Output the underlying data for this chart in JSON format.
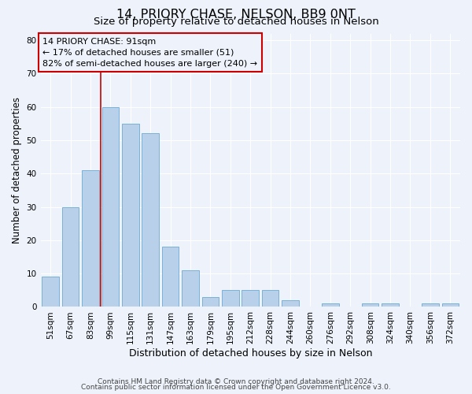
{
  "title": "14, PRIORY CHASE, NELSON, BB9 0NT",
  "subtitle": "Size of property relative to detached houses in Nelson",
  "xlabel": "Distribution of detached houses by size in Nelson",
  "ylabel": "Number of detached properties",
  "footnote1": "Contains HM Land Registry data © Crown copyright and database right 2024.",
  "footnote2": "Contains public sector information licensed under the Open Government Licence v3.0.",
  "annotation_line1": "14 PRIORY CHASE: 91sqm",
  "annotation_line2": "← 17% of detached houses are smaller (51)",
  "annotation_line3": "82% of semi-detached houses are larger (240) →",
  "bar_labels": [
    "51sqm",
    "67sqm",
    "83sqm",
    "99sqm",
    "115sqm",
    "131sqm",
    "147sqm",
    "163sqm",
    "179sqm",
    "195sqm",
    "212sqm",
    "228sqm",
    "244sqm",
    "260sqm",
    "276sqm",
    "292sqm",
    "308sqm",
    "324sqm",
    "340sqm",
    "356sqm",
    "372sqm"
  ],
  "bar_values": [
    9,
    30,
    41,
    60,
    55,
    52,
    18,
    11,
    3,
    5,
    5,
    5,
    2,
    0,
    1,
    0,
    1,
    1,
    0,
    1,
    1
  ],
  "bar_color": "#b8d0ea",
  "bar_edge_color": "#6aaad4",
  "vline_x_idx": 2.5,
  "vline_color": "#cc0000",
  "annotation_box_color": "#cc0000",
  "ylim": [
    0,
    82
  ],
  "yticks": [
    0,
    10,
    20,
    30,
    40,
    50,
    60,
    70,
    80
  ],
  "background_color": "#edf2fb",
  "grid_color": "#ffffff",
  "title_fontsize": 11.5,
  "subtitle_fontsize": 9.5,
  "xlabel_fontsize": 9,
  "ylabel_fontsize": 8.5,
  "tick_fontsize": 7.5,
  "annotation_fontsize": 8,
  "footnote_fontsize": 6.5
}
